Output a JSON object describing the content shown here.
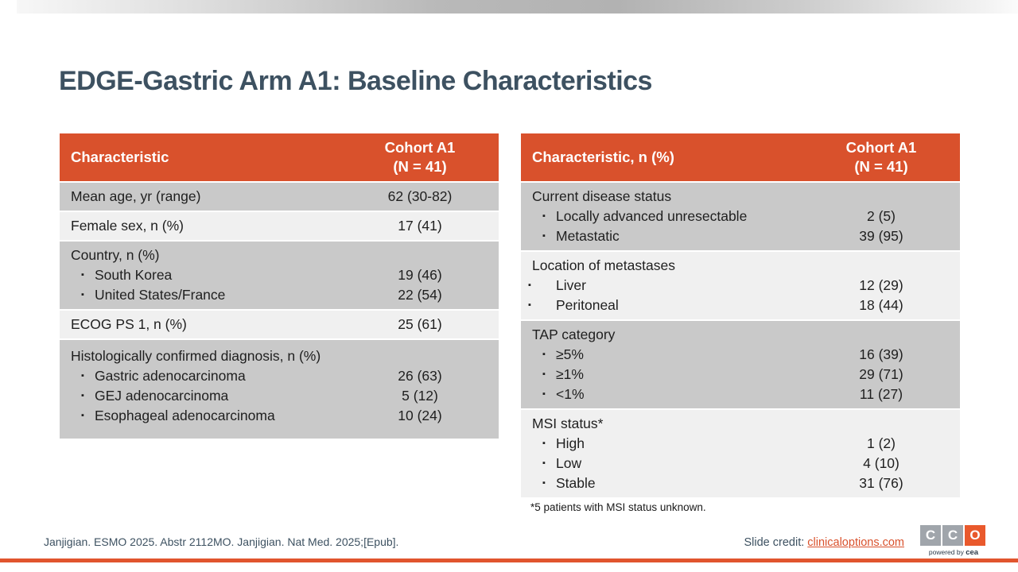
{
  "slide": {
    "title": "EDGE-Gastric Arm A1: Baseline Characteristics",
    "citation": "Janjigian. ESMO 2025. Abstr 2112MO. Janjigian. Nat Med. 2025;[Epub].",
    "slide_credit": {
      "label": "Slide credit: ",
      "link": "clinicaloptions.com"
    },
    "logo": {
      "letters": [
        "C",
        "C",
        "O"
      ],
      "tagline_prefix": "powered by ",
      "tagline_brand": "cea"
    }
  },
  "colors": {
    "accent_orange": "#d9512c",
    "dark_row_gray": "#c9c9c9",
    "light_row_gray": "#f0f0f0",
    "title_slate": "#3d5161",
    "bottom_bar_orange": "#e1552e",
    "logo_gray": "#a0a5ab",
    "logo_orange": "#e9592c"
  },
  "tables": [
    {
      "name": "baseline-characteristics-left",
      "header": {
        "label": "Characteristic",
        "cohort_line1": "Cohort A1",
        "cohort_line2": "(N = 41)"
      },
      "groups": [
        {
          "shade": "dark",
          "rows": [
            {
              "label": "Mean age, yr (range)",
              "value": "62 (30-82)",
              "bullet": false
            }
          ]
        },
        {
          "shade": "light",
          "rows": [
            {
              "label": "Female sex, n (%)",
              "value": "17 (41)",
              "bullet": false
            }
          ]
        },
        {
          "shade": "dark",
          "rows": [
            {
              "label": "Country, n (%)",
              "value": "",
              "bullet": false
            },
            {
              "label": "South Korea",
              "value": "19 (46)",
              "bullet": true
            },
            {
              "label": "United States/France",
              "value": "22 (54)",
              "bullet": true
            }
          ]
        },
        {
          "shade": "light",
          "rows": [
            {
              "label": "ECOG PS 1, n (%)",
              "value": "25 (61)",
              "bullet": false
            }
          ]
        },
        {
          "shade": "dark",
          "rows": [
            {
              "label": "Histologically confirmed diagnosis, n (%)",
              "value": "",
              "bullet": false
            },
            {
              "label": "Gastric adenocarcinoma",
              "value": "26 (63)",
              "bullet": true
            },
            {
              "label": "GEJ adenocarcinoma",
              "value": "5 (12)",
              "bullet": true
            },
            {
              "label": "Esophageal adenocarcinoma",
              "value": "10 (24)",
              "bullet": true
            }
          ]
        }
      ],
      "footnote": ""
    },
    {
      "name": "baseline-characteristics-right",
      "header": {
        "label": "Characteristic, n (%)",
        "cohort_line1": "Cohort A1",
        "cohort_line2": "(N = 41)"
      },
      "groups": [
        {
          "shade": "dark",
          "rows": [
            {
              "label": "Current disease status",
              "value": "",
              "bullet": false
            },
            {
              "label": "Locally advanced unresectable",
              "value": "2 (5)",
              "bullet": true
            },
            {
              "label": "Metastatic",
              "value": "39 (95)",
              "bullet": true
            }
          ]
        },
        {
          "shade": "light",
          "rows": [
            {
              "label": "Location of metastases",
              "value": "",
              "bullet": false
            },
            {
              "label": "Liver",
              "value": "12 (29)",
              "bullet": true,
              "wide": true
            },
            {
              "label": "Peritoneal",
              "value": "18 (44)",
              "bullet": true,
              "wide": true
            }
          ]
        },
        {
          "shade": "dark",
          "rows": [
            {
              "label": "TAP category",
              "value": "",
              "bullet": false
            },
            {
              "label": "≥5%",
              "value": "16 (39)",
              "bullet": true
            },
            {
              "label": "≥1%",
              "value": "29 (71)",
              "bullet": true
            },
            {
              "label": "<1%",
              "value": "11 (27)",
              "bullet": true
            }
          ]
        },
        {
          "shade": "light",
          "rows": [
            {
              "label": "MSI status*",
              "value": "",
              "bullet": false
            },
            {
              "label": "High",
              "value": "1 (2)",
              "bullet": true
            },
            {
              "label": "Low",
              "value": "4 (10)",
              "bullet": true
            },
            {
              "label": "Stable",
              "value": "31 (76)",
              "bullet": true
            }
          ]
        }
      ],
      "footnote": "*5 patients with MSI status unknown."
    }
  ],
  "bullet_glyph": "▪"
}
